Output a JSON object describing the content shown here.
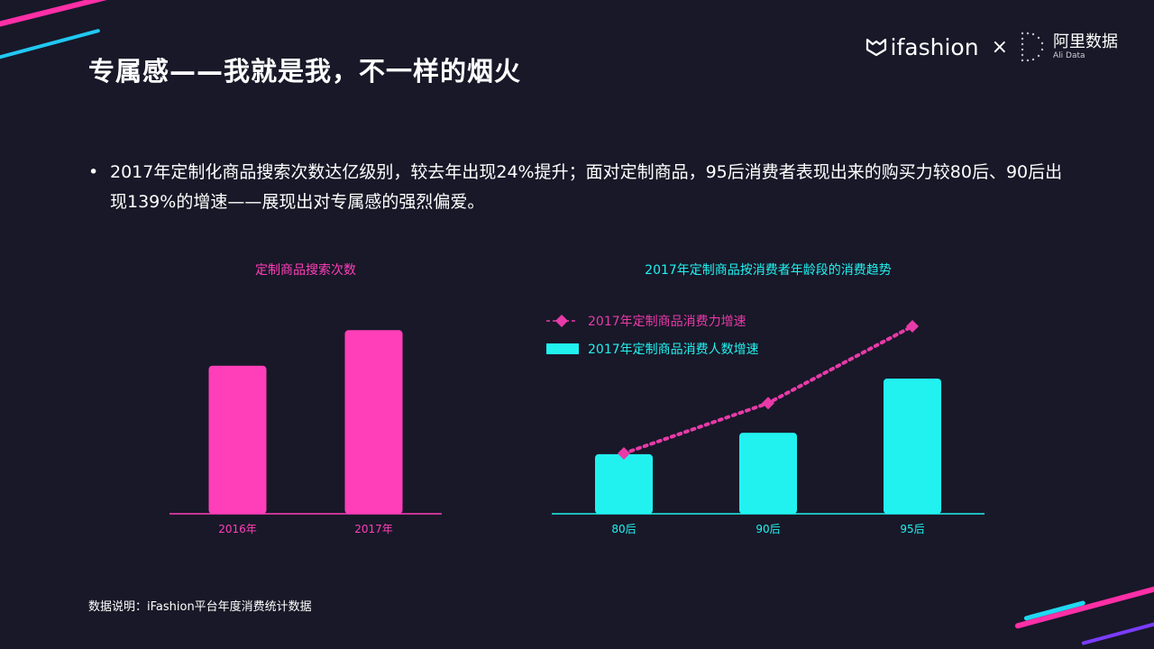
{
  "colors": {
    "background": "#181828",
    "pink": "#ff3fb9",
    "cyan": "#21f2f0",
    "magenta_dotted": "#e83aa8",
    "purple_stripe": "#7b3cff"
  },
  "header": {
    "title": "专属感——我就是我，不一样的烟火",
    "logo": {
      "brand_text": "ifashion",
      "times": "×",
      "ali_name": "阿里数据",
      "ali_sub": "Ali Data"
    }
  },
  "bullet_text": "2017年定制化商品搜索次数达亿级别，较去年出现24%提升；面对定制商品，95后消费者表现出来的购买力较80后、90后出现139%的增速——展现出对专属感的强烈偏爱。",
  "footnote": "数据说明：iFashion平台年度消费统计数据",
  "chart_data": [
    {
      "type": "bar",
      "title": "定制商品搜索次数",
      "categories": [
        "2016年",
        "2017年"
      ],
      "values": [
        1.0,
        1.24
      ],
      "ylim": [
        0,
        1.4
      ],
      "color": "#ff3fb9",
      "grid": false
    },
    {
      "type": "bar+line",
      "title": "2017年定制商品按消费者年龄段的消费趋势",
      "categories": [
        "80后",
        "90后",
        "95后"
      ],
      "legend_position": "top-left",
      "grid": false,
      "series": [
        {
          "name": "2017年定制商品消费力增速",
          "kind": "line",
          "style": "dotted-diamond",
          "color": "#e83aa8",
          "values": [
            1.0,
            1.55,
            2.39
          ]
        },
        {
          "name": "2017年定制商品消费人数增速",
          "kind": "bar",
          "color": "#21f2f0",
          "values": [
            1.0,
            1.36,
            2.27
          ]
        }
      ]
    }
  ]
}
